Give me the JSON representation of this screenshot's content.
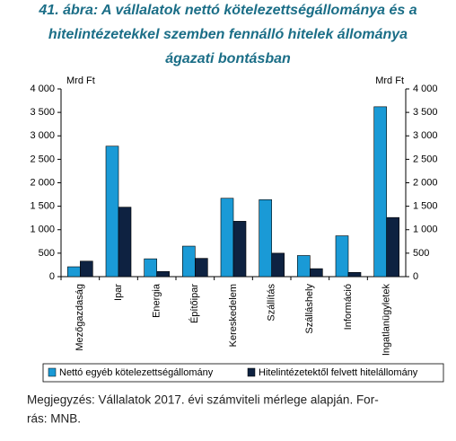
{
  "chart_data": {
    "type": "bar",
    "title": [
      "41. ábra: A vállalatok nettó kötelezettségállománya és a",
      "hitelintézetekkel szemben fennálló hitelek állománya",
      "ágazati bontásban"
    ],
    "y_label": "Mrd Ft",
    "y2_label": "Mrd Ft",
    "categories": [
      "Mezőgazdaság",
      "Ipar",
      "Energia",
      "Építőipar",
      "Kereskedelem",
      "Szállítás",
      "Szálláshely",
      "Információ",
      "Ingatlanügyletek"
    ],
    "series": [
      {
        "name": "Nettó egyéb kötelezettségállomány",
        "color": "#1a9ad6",
        "values": [
          210,
          2780,
          380,
          650,
          1670,
          1640,
          450,
          870,
          3620
        ]
      },
      {
        "name": "Hitelintézetektől felvett hitelállomány",
        "color": "#0e2241",
        "values": [
          330,
          1480,
          110,
          390,
          1180,
          500,
          170,
          90,
          1260
        ]
      }
    ],
    "ylim": [
      0,
      4000
    ],
    "yticks": [
      0,
      500,
      {
        "value": 1000,
        "label": "1 000"
      },
      {
        "value": 1500,
        "label": "1 500"
      },
      {
        "value": 2000,
        "label": "2 000"
      },
      {
        "value": 2500,
        "label": "2 500"
      },
      {
        "value": 3000,
        "label": "3 000"
      },
      {
        "value": 3500,
        "label": "3 500"
      },
      {
        "value": 4000,
        "label": "4 000"
      }
    ],
    "y2lim": [
      0,
      4000
    ],
    "y2ticks": [
      0,
      500,
      {
        "value": 1000,
        "label": "1 000"
      },
      {
        "value": 1500,
        "label": "1 500"
      },
      {
        "value": 2000,
        "label": "2 000"
      },
      {
        "value": 2500,
        "label": "2 500"
      },
      {
        "value": 3000,
        "label": "3 000"
      },
      {
        "value": 3500,
        "label": "3 500"
      },
      {
        "value": 4000,
        "label": "4 000"
      }
    ],
    "grid": false,
    "note": [
      "Megjegyzés: Vállalatok 2017. évi számviteli mérlege alapján. For-",
      "rás: MNB."
    ]
  }
}
